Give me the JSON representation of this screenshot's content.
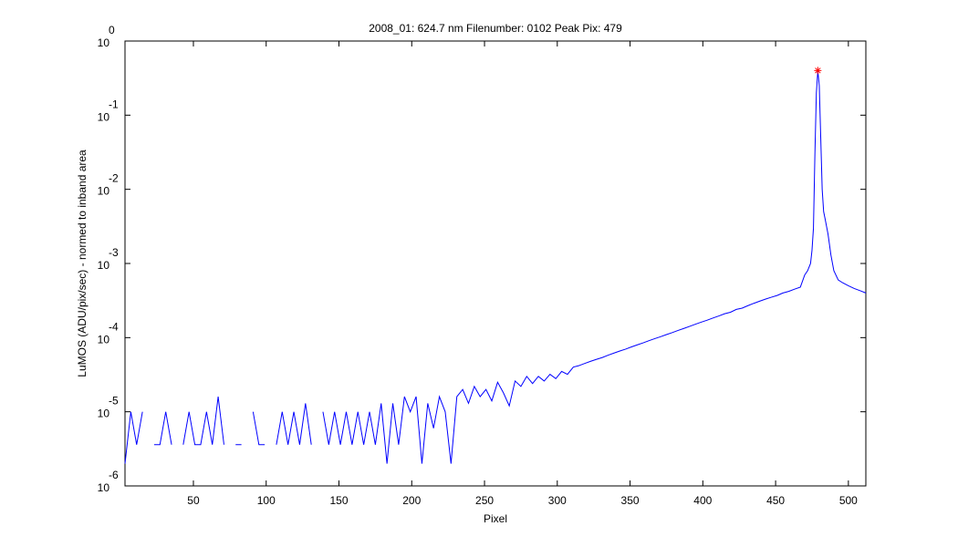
{
  "chart_data": {
    "type": "line",
    "title": "2008_01: 624.7 nm  Filenumber: 0102 Peak Pix: 479",
    "xlabel": "Pixel",
    "ylabel": "LuMOS (ADU/pix/sec) - normed to inband area",
    "yscale": "log",
    "xlim": [
      3,
      512
    ],
    "ylim": [
      1e-06,
      1
    ],
    "xticks": [
      50,
      100,
      150,
      200,
      250,
      300,
      350,
      400,
      450,
      500
    ],
    "yticks": [
      {
        "value": 1e-06,
        "label": "10",
        "exponent": "-6"
      },
      {
        "value": 1e-05,
        "label": "10",
        "exponent": "-5"
      },
      {
        "value": 0.0001,
        "label": "10",
        "exponent": "-4"
      },
      {
        "value": 0.001,
        "label": "10",
        "exponent": "-3"
      },
      {
        "value": 0.01,
        "label": "10",
        "exponent": "-2"
      },
      {
        "value": 0.1,
        "label": "10",
        "exponent": "-1"
      },
      {
        "value": 1,
        "label": "10",
        "exponent": "0"
      }
    ],
    "grid": false,
    "series": [
      {
        "color": "#0000ff",
        "x": [
          3,
          7,
          11,
          15,
          19,
          23,
          27,
          31,
          35,
          39,
          43,
          47,
          51,
          55,
          59,
          63,
          67,
          71,
          75,
          79,
          83,
          87,
          91,
          95,
          99,
          103,
          107,
          111,
          115,
          119,
          123,
          127,
          131,
          135,
          139,
          143,
          147,
          151,
          155,
          159,
          163,
          167,
          171,
          175,
          179,
          183,
          187,
          191,
          195,
          199,
          203,
          207,
          211,
          215,
          219,
          223,
          227,
          231,
          235,
          239,
          243,
          247,
          251,
          255,
          259,
          263,
          267,
          271,
          275,
          279,
          283,
          287,
          291,
          295,
          299,
          303,
          307,
          311,
          315,
          319,
          323,
          327,
          331,
          335,
          339,
          343,
          347,
          351,
          355,
          359,
          363,
          367,
          371,
          375,
          379,
          383,
          387,
          391,
          395,
          399,
          403,
          407,
          411,
          415,
          419,
          423,
          427,
          431,
          435,
          439,
          443,
          447,
          451,
          455,
          459,
          463,
          467,
          470,
          472,
          474,
          475,
          476,
          477,
          478,
          479,
          480,
          481,
          482,
          483,
          484,
          486,
          488,
          490,
          493,
          496,
          500,
          504,
          508,
          512
        ],
        "values": [
          2e-06,
          1e-05,
          3.6e-06,
          1e-05,
          null,
          3.6e-06,
          3.6e-06,
          1e-05,
          3.6e-06,
          null,
          3.6e-06,
          1e-05,
          3.6e-06,
          3.6e-06,
          1e-05,
          3.6e-06,
          1.6e-05,
          3.6e-06,
          null,
          3.6e-06,
          3.6e-06,
          null,
          1e-05,
          3.6e-06,
          3.6e-06,
          null,
          3.6e-06,
          1e-05,
          3.6e-06,
          1e-05,
          3.6e-06,
          1.3e-05,
          3.6e-06,
          null,
          1e-05,
          3.6e-06,
          1e-05,
          3.6e-06,
          1e-05,
          3.6e-06,
          1e-05,
          3.6e-06,
          1e-05,
          3.6e-06,
          1.3e-05,
          2e-06,
          1.3e-05,
          3.6e-06,
          1.6e-05,
          1e-05,
          1.6e-05,
          2e-06,
          1.3e-05,
          6e-06,
          1.6e-05,
          1e-05,
          2e-06,
          1.6e-05,
          2e-05,
          1.3e-05,
          2.2e-05,
          1.6e-05,
          2e-05,
          1.4e-05,
          2.5e-05,
          1.8e-05,
          1.2e-05,
          2.6e-05,
          2.2e-05,
          3e-05,
          2.4e-05,
          3e-05,
          2.6e-05,
          3.2e-05,
          2.8e-05,
          3.5e-05,
          3.2e-05,
          4e-05,
          4.2e-05,
          4.5e-05,
          4.8e-05,
          5.1e-05,
          5.4e-05,
          5.8e-05,
          6.2e-05,
          6.6e-05,
          7e-05,
          7.5e-05,
          8e-05,
          8.5e-05,
          9.1e-05,
          9.7e-05,
          0.000103,
          0.00011,
          0.000117,
          0.000125,
          0.000133,
          0.000142,
          0.000152,
          0.000162,
          0.000172,
          0.000184,
          0.000196,
          0.00021,
          0.00022,
          0.00024,
          0.00025,
          0.00027,
          0.00029,
          0.00031,
          0.00033,
          0.00035,
          0.00037,
          0.0004,
          0.00042,
          0.00045,
          0.00048,
          0.0007,
          0.0008,
          0.001,
          0.0015,
          0.003,
          0.03,
          0.2,
          0.4,
          0.25,
          0.05,
          0.01,
          0.005,
          0.004,
          0.0025,
          0.0013,
          0.0008,
          0.0006,
          0.00055,
          0.0005,
          0.00046,
          0.00043,
          0.0004
        ]
      }
    ],
    "peak": {
      "x": 479,
      "y": 0.4,
      "color": "#ff0000"
    }
  }
}
